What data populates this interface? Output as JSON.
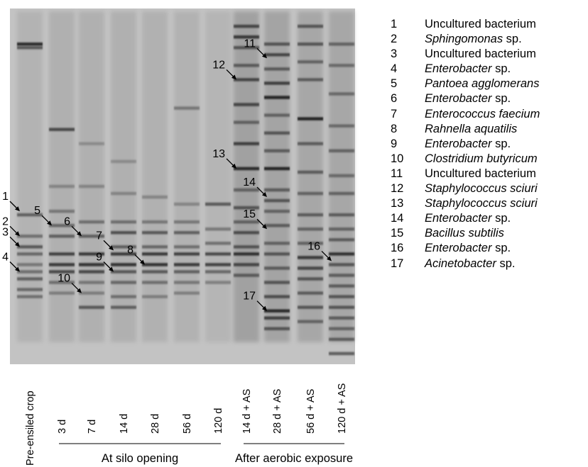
{
  "gel": {
    "background": "#c3c3c3",
    "band_color": "#1c1c1c",
    "lanes": [
      {
        "label": "Pre-ensiled crop",
        "bands": [
          [
            0.1,
            0.9
          ],
          [
            0.11,
            0.6
          ],
          [
            0.58,
            0.55
          ],
          [
            0.64,
            0.45
          ],
          [
            0.67,
            0.6
          ],
          [
            0.69,
            0.5
          ],
          [
            0.72,
            0.4
          ],
          [
            0.74,
            0.45
          ],
          [
            0.76,
            0.55
          ],
          [
            0.79,
            0.5
          ],
          [
            0.81,
            0.45
          ]
        ],
        "smear": 0.25
      },
      {
        "label": "3 d",
        "bands": [
          [
            0.34,
            0.7
          ],
          [
            0.5,
            0.3
          ],
          [
            0.57,
            0.4
          ],
          [
            0.61,
            0.5
          ],
          [
            0.64,
            0.55
          ],
          [
            0.69,
            0.75
          ],
          [
            0.72,
            0.8
          ],
          [
            0.74,
            0.7
          ],
          [
            0.77,
            0.45
          ],
          [
            0.8,
            0.35
          ]
        ],
        "smear": 0.3
      },
      {
        "label": "7 d",
        "bands": [
          [
            0.38,
            0.25
          ],
          [
            0.5,
            0.3
          ],
          [
            0.6,
            0.45
          ],
          [
            0.64,
            0.55
          ],
          [
            0.69,
            0.8
          ],
          [
            0.72,
            0.85
          ],
          [
            0.74,
            0.7
          ],
          [
            0.77,
            0.4
          ],
          [
            0.8,
            0.35
          ],
          [
            0.84,
            0.6
          ]
        ],
        "smear": 0.3
      },
      {
        "label": "14 d",
        "bands": [
          [
            0.43,
            0.25
          ],
          [
            0.52,
            0.3
          ],
          [
            0.6,
            0.45
          ],
          [
            0.63,
            0.65
          ],
          [
            0.67,
            0.55
          ],
          [
            0.69,
            0.8
          ],
          [
            0.72,
            0.85
          ],
          [
            0.74,
            0.6
          ],
          [
            0.77,
            0.5
          ],
          [
            0.81,
            0.45
          ],
          [
            0.84,
            0.55
          ]
        ],
        "smear": 0.3
      },
      {
        "label": "28 d",
        "bands": [
          [
            0.53,
            0.3
          ],
          [
            0.6,
            0.4
          ],
          [
            0.63,
            0.6
          ],
          [
            0.67,
            0.5
          ],
          [
            0.69,
            0.8
          ],
          [
            0.72,
            0.85
          ],
          [
            0.74,
            0.6
          ],
          [
            0.77,
            0.45
          ],
          [
            0.81,
            0.35
          ]
        ],
        "smear": 0.28
      },
      {
        "label": "56 d",
        "bands": [
          [
            0.28,
            0.4
          ],
          [
            0.55,
            0.3
          ],
          [
            0.6,
            0.4
          ],
          [
            0.63,
            0.55
          ],
          [
            0.67,
            0.45
          ],
          [
            0.69,
            0.75
          ],
          [
            0.72,
            0.8
          ],
          [
            0.74,
            0.55
          ],
          [
            0.77,
            0.4
          ],
          [
            0.8,
            0.35
          ]
        ],
        "smear": 0.27
      },
      {
        "label": "120 d",
        "bands": [
          [
            0.55,
            0.6
          ],
          [
            0.62,
            0.4
          ],
          [
            0.66,
            0.45
          ],
          [
            0.69,
            0.7
          ],
          [
            0.72,
            0.75
          ],
          [
            0.74,
            0.5
          ],
          [
            0.77,
            0.35
          ]
        ],
        "smear": 0.22
      },
      {
        "label": "14 d + AS",
        "bands": [
          [
            0.05,
            0.7
          ],
          [
            0.08,
            0.8
          ],
          [
            0.11,
            0.6
          ],
          [
            0.16,
            0.55
          ],
          [
            0.2,
            0.7
          ],
          [
            0.27,
            0.7
          ],
          [
            0.32,
            0.5
          ],
          [
            0.38,
            0.75
          ],
          [
            0.45,
            0.9
          ],
          [
            0.51,
            0.5
          ],
          [
            0.56,
            0.6
          ],
          [
            0.6,
            0.5
          ],
          [
            0.63,
            0.65
          ],
          [
            0.67,
            0.6
          ],
          [
            0.69,
            0.85
          ],
          [
            0.72,
            0.7
          ],
          [
            0.75,
            0.55
          ]
        ],
        "smear": 0.55
      },
      {
        "label": "28 d + AS",
        "bands": [
          [
            0.1,
            0.6
          ],
          [
            0.13,
            0.7
          ],
          [
            0.17,
            0.55
          ],
          [
            0.21,
            0.75
          ],
          [
            0.25,
            0.95
          ],
          [
            0.3,
            0.5
          ],
          [
            0.35,
            0.6
          ],
          [
            0.4,
            0.55
          ],
          [
            0.45,
            0.95
          ],
          [
            0.51,
            0.55
          ],
          [
            0.54,
            0.6
          ],
          [
            0.57,
            0.5
          ],
          [
            0.61,
            0.55
          ],
          [
            0.66,
            0.5
          ],
          [
            0.69,
            0.6
          ],
          [
            0.73,
            0.55
          ],
          [
            0.77,
            0.6
          ],
          [
            0.81,
            0.65
          ],
          [
            0.85,
            0.9
          ],
          [
            0.87,
            0.75
          ],
          [
            0.9,
            0.6
          ]
        ],
        "smear": 0.5
      },
      {
        "label": "56 d + AS",
        "bands": [
          [
            0.05,
            0.6
          ],
          [
            0.1,
            0.6
          ],
          [
            0.15,
            0.5
          ],
          [
            0.2,
            0.55
          ],
          [
            0.31,
            0.95
          ],
          [
            0.38,
            0.55
          ],
          [
            0.46,
            0.55
          ],
          [
            0.52,
            0.5
          ],
          [
            0.58,
            0.55
          ],
          [
            0.62,
            0.5
          ],
          [
            0.66,
            0.5
          ],
          [
            0.7,
            0.8
          ],
          [
            0.73,
            0.7
          ],
          [
            0.76,
            0.6
          ],
          [
            0.8,
            0.55
          ],
          [
            0.84,
            0.6
          ],
          [
            0.88,
            0.5
          ]
        ],
        "smear": 0.45
      },
      {
        "label": "120 d + AS",
        "bands": [
          [
            0.1,
            0.5
          ],
          [
            0.16,
            0.45
          ],
          [
            0.24,
            0.45
          ],
          [
            0.33,
            0.45
          ],
          [
            0.4,
            0.5
          ],
          [
            0.47,
            0.45
          ],
          [
            0.52,
            0.5
          ],
          [
            0.58,
            0.55
          ],
          [
            0.62,
            0.5
          ],
          [
            0.65,
            0.55
          ],
          [
            0.69,
            0.85
          ],
          [
            0.72,
            0.6
          ],
          [
            0.75,
            0.55
          ],
          [
            0.78,
            0.55
          ],
          [
            0.81,
            0.6
          ],
          [
            0.84,
            0.6
          ],
          [
            0.87,
            0.55
          ],
          [
            0.9,
            0.5
          ],
          [
            0.93,
            0.55
          ],
          [
            0.97,
            0.6
          ]
        ],
        "smear": 0.45
      }
    ],
    "markers": [
      {
        "label": "1",
        "lane": 0,
        "pos": 0.57
      },
      {
        "label": "3",
        "lane": 0,
        "pos": 0.67
      },
      {
        "label": "2",
        "lane": 0,
        "pos": 0.64
      },
      {
        "label": "4",
        "lane": 0,
        "pos": 0.74
      },
      {
        "label": "5",
        "lane": 1,
        "pos": 0.61
      },
      {
        "label": "10",
        "lane": 2,
        "pos": 0.8
      },
      {
        "label": "6",
        "lane": 2,
        "pos": 0.64
      },
      {
        "label": "7",
        "lane": 3,
        "pos": 0.68
      },
      {
        "label": "9",
        "lane": 3,
        "pos": 0.74
      },
      {
        "label": "8",
        "lane": 4,
        "pos": 0.72
      },
      {
        "label": "12",
        "lane": 7,
        "pos": 0.2
      },
      {
        "label": "13",
        "lane": 7,
        "pos": 0.45
      },
      {
        "label": "11",
        "lane": 8,
        "pos": 0.14
      },
      {
        "label": "14",
        "lane": 8,
        "pos": 0.53
      },
      {
        "label": "15",
        "lane": 8,
        "pos": 0.62
      },
      {
        "label": "17",
        "lane": 8,
        "pos": 0.85
      },
      {
        "label": "16",
        "lane": 10,
        "pos": 0.71
      }
    ],
    "groups": [
      {
        "label": "At silo opening",
        "first_lane": 1,
        "last_lane": 6
      },
      {
        "label": "After aerobic exposure",
        "first_lane": 7,
        "last_lane": 10
      }
    ]
  },
  "legend": [
    {
      "num": "1",
      "name": "Uncultured bacterium",
      "italic": false,
      "suffix": ""
    },
    {
      "num": "2",
      "name": "Sphingomonas",
      "italic": true,
      "suffix": " sp."
    },
    {
      "num": "3",
      "name": "Uncultured bacterium",
      "italic": false,
      "suffix": ""
    },
    {
      "num": "4",
      "name": "Enterobacter",
      "italic": true,
      "suffix": " sp."
    },
    {
      "num": "5",
      "name": "Pantoea agglomerans",
      "italic": true,
      "suffix": ""
    },
    {
      "num": "6",
      "name": "Enterobacter",
      "italic": true,
      "suffix": " sp."
    },
    {
      "num": "7",
      "name": "Enterococcus faecium",
      "italic": true,
      "suffix": ""
    },
    {
      "num": "8",
      "name": "Rahnella aquatilis",
      "italic": true,
      "suffix": ""
    },
    {
      "num": "9",
      "name": "Enterobacter",
      "italic": true,
      "suffix": " sp."
    },
    {
      "num": "10",
      "name": "Clostridium butyricum",
      "italic": true,
      "suffix": ""
    },
    {
      "num": "11",
      "name": "Uncultured bacterium",
      "italic": false,
      "suffix": ""
    },
    {
      "num": "12",
      "name": "Staphylococcus sciuri",
      "italic": true,
      "suffix": ""
    },
    {
      "num": "13",
      "name": "Staphylococcus sciuri",
      "italic": true,
      "suffix": ""
    },
    {
      "num": "14",
      "name": "Enterobacter",
      "italic": true,
      "suffix": " sp."
    },
    {
      "num": "15",
      "name": "Bacillus subtilis",
      "italic": true,
      "suffix": ""
    },
    {
      "num": "16",
      "name": "Enterobacter",
      "italic": true,
      "suffix": " sp."
    },
    {
      "num": "17",
      "name": "Acinetobacter",
      "italic": true,
      "suffix": " sp."
    }
  ]
}
